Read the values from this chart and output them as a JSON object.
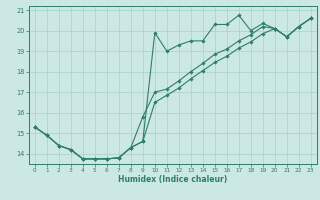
{
  "xlabel": "Humidex (Indice chaleur)",
  "x_values": [
    0,
    1,
    2,
    3,
    4,
    5,
    6,
    7,
    8,
    9,
    10,
    11,
    12,
    13,
    14,
    15,
    16,
    17,
    18,
    19,
    20,
    21,
    22,
    23
  ],
  "y_upper": [
    15.3,
    14.9,
    14.4,
    14.2,
    13.75,
    13.75,
    13.75,
    13.8,
    14.3,
    14.6,
    19.9,
    19.0,
    19.3,
    19.5,
    19.5,
    20.3,
    20.3,
    20.75,
    20.0,
    20.35,
    20.1,
    19.7,
    20.2,
    20.6
  ],
  "y_mid": [
    15.3,
    14.9,
    14.4,
    14.2,
    13.75,
    13.75,
    13.75,
    13.8,
    14.3,
    15.8,
    17.0,
    17.15,
    17.55,
    18.0,
    18.4,
    18.85,
    19.1,
    19.5,
    19.8,
    20.2,
    20.1,
    19.7,
    20.2,
    20.6
  ],
  "y_lower": [
    15.3,
    14.9,
    14.4,
    14.2,
    13.75,
    13.75,
    13.75,
    13.8,
    14.3,
    14.6,
    16.5,
    16.85,
    17.2,
    17.65,
    18.05,
    18.45,
    18.75,
    19.15,
    19.45,
    19.85,
    20.1,
    19.7,
    20.2,
    20.6
  ],
  "ylim": [
    13.5,
    21.2
  ],
  "xlim": [
    -0.5,
    23.5
  ],
  "yticks": [
    14,
    15,
    16,
    17,
    18,
    19,
    20,
    21
  ],
  "xticks": [
    0,
    1,
    2,
    3,
    4,
    5,
    6,
    7,
    8,
    9,
    10,
    11,
    12,
    13,
    14,
    15,
    16,
    17,
    18,
    19,
    20,
    21,
    22,
    23
  ],
  "line_color": "#2e7d6e",
  "bg_color": "#cce8e4",
  "grid_color": "#aacfcb",
  "marker": "D",
  "marker_size": 1.8,
  "linewidth": 0.8
}
